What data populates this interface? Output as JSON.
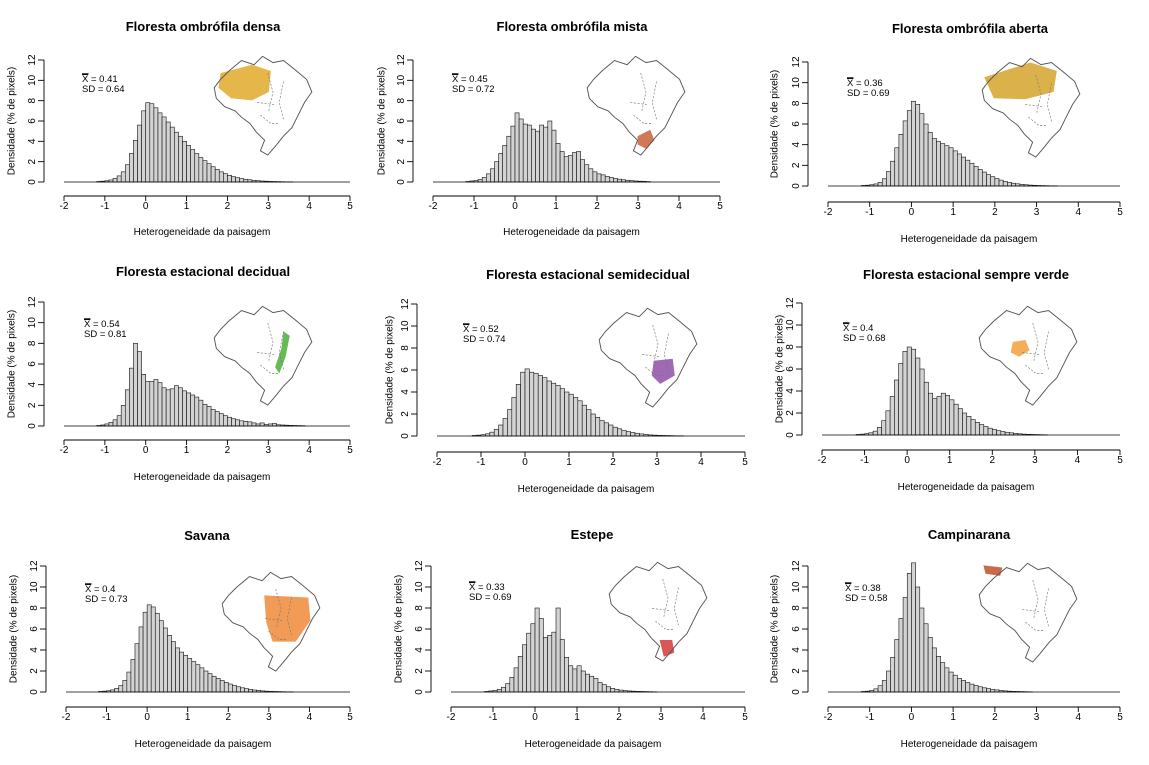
{
  "figure": {
    "xlabel": "Heterogeneidade da paisagem",
    "ylabel": "Densidade (% de pixels)",
    "mean_symbol": "X"
  },
  "chart_data": [
    {
      "type": "bar",
      "title": "Floresta ombrófila densa",
      "xlabel": "Heterogeneidade da paisagem",
      "ylabel": "Densidade (% de pixels)",
      "xlim": [
        -2,
        5
      ],
      "ylim": [
        0,
        12
      ],
      "xticks": [
        "-2",
        "-1",
        "0",
        "1",
        "2",
        "3",
        "4",
        "5"
      ],
      "yticks": [
        "0",
        "2",
        "4",
        "6",
        "8",
        "10",
        "12"
      ],
      "mean": "0.41",
      "sd": "0.64",
      "map_color": "#e0a92a",
      "bins": {
        "start": -2.0,
        "width": 0.1
      },
      "values": [
        0,
        0,
        0,
        0,
        0,
        0,
        0,
        0,
        0.05,
        0.08,
        0.12,
        0.2,
        0.35,
        0.6,
        1.0,
        1.7,
        2.8,
        4.1,
        5.6,
        7.0,
        7.8,
        7.7,
        7.3,
        6.8,
        6.4,
        5.9,
        5.4,
        4.9,
        4.5,
        4.0,
        3.6,
        3.2,
        2.8,
        2.4,
        2.1,
        1.8,
        1.5,
        1.25,
        1.0,
        0.82,
        0.66,
        0.52,
        0.42,
        0.34,
        0.27,
        0.22,
        0.17,
        0.13,
        0.1,
        0.08,
        0.06,
        0.05,
        0.04,
        0.03,
        0.02,
        0.02
      ]
    },
    {
      "type": "bar",
      "title": "Floresta ombrófila mista",
      "xlabel": "Heterogeneidade da paisagem",
      "ylabel": "Densidade (% de pixels)",
      "xlim": [
        -2,
        5
      ],
      "ylim": [
        0,
        12
      ],
      "xticks": [
        "-2",
        "-1",
        "0",
        "1",
        "2",
        "3",
        "4",
        "5"
      ],
      "yticks": [
        "0",
        "2",
        "4",
        "6",
        "8",
        "10",
        "12"
      ],
      "mean": "0.45",
      "sd": "0.72",
      "map_color": "#c9603a",
      "bins": {
        "start": -2.0,
        "width": 0.1
      },
      "values": [
        0,
        0,
        0,
        0,
        0,
        0,
        0,
        0,
        0.05,
        0.1,
        0.15,
        0.25,
        0.45,
        0.8,
        1.3,
        2.0,
        2.8,
        3.6,
        4.5,
        5.5,
        6.8,
        6.2,
        5.7,
        5.6,
        5.2,
        5.0,
        5.6,
        5.4,
        6.0,
        5.1,
        3.8,
        3.0,
        2.5,
        2.6,
        2.9,
        3.0,
        2.2,
        1.7,
        1.3,
        1.0,
        0.8,
        0.7,
        0.55,
        0.45,
        0.35,
        0.28,
        0.22,
        0.17,
        0.13,
        0.1,
        0.08,
        0.06,
        0.04
      ]
    },
    {
      "type": "bar",
      "title": "Floresta ombrófila aberta",
      "xlabel": "Heterogeneidade da paisagem",
      "ylabel": "Densidade (% de pixels)",
      "xlim": [
        -2,
        5
      ],
      "ylim": [
        0,
        12
      ],
      "xticks": [
        "-2",
        "-1",
        "0",
        "1",
        "2",
        "3",
        "4",
        "5"
      ],
      "yticks": [
        "0",
        "2",
        "4",
        "6",
        "8",
        "10",
        "12"
      ],
      "mean": "0.36",
      "sd": "0.69",
      "map_color": "#d4a32c",
      "bins": {
        "start": -2.0,
        "width": 0.1
      },
      "values": [
        0,
        0,
        0,
        0,
        0,
        0,
        0,
        0,
        0.05,
        0.08,
        0.12,
        0.2,
        0.35,
        0.7,
        1.4,
        2.4,
        3.7,
        5.0,
        6.3,
        7.3,
        8.2,
        7.9,
        7.0,
        6.0,
        5.2,
        4.6,
        4.3,
        4.1,
        3.9,
        3.7,
        3.4,
        3.1,
        2.8,
        2.5,
        2.2,
        1.9,
        1.6,
        1.35,
        1.1,
        0.9,
        0.72,
        0.57,
        0.45,
        0.35,
        0.27,
        0.21,
        0.16,
        0.12,
        0.09,
        0.07,
        0.05,
        0.04,
        0.03,
        0.02,
        0.02
      ]
    },
    {
      "type": "bar",
      "title": "Floresta estacional decidual",
      "xlabel": "Heterogeneidade da paisagem",
      "ylabel": "Densidade (% de pixels)",
      "xlim": [
        -2,
        5
      ],
      "ylim": [
        0,
        12
      ],
      "xticks": [
        "-2",
        "-1",
        "0",
        "1",
        "2",
        "3",
        "4",
        "5"
      ],
      "yticks": [
        "0",
        "2",
        "4",
        "6",
        "8",
        "10",
        "12"
      ],
      "mean": "0.54",
      "sd": "0.81",
      "map_color": "#4caf3a",
      "bins": {
        "start": -2.0,
        "width": 0.1
      },
      "values": [
        0,
        0,
        0,
        0,
        0,
        0,
        0,
        0,
        0.05,
        0.1,
        0.2,
        0.35,
        0.6,
        1.0,
        2.0,
        3.5,
        5.6,
        8.0,
        7.2,
        5.0,
        4.3,
        4.3,
        4.5,
        4.2,
        3.7,
        3.5,
        3.6,
        3.9,
        3.7,
        3.4,
        3.2,
        3.0,
        2.8,
        2.5,
        2.1,
        1.9,
        1.6,
        1.4,
        1.2,
        1.0,
        0.85,
        0.7,
        0.6,
        0.5,
        0.45,
        0.4,
        0.3,
        0.2,
        0.3,
        0.15,
        0.2,
        0.25,
        0.12,
        0.1,
        0.08,
        0.06,
        0.05,
        0.04,
        0.03
      ]
    },
    {
      "type": "bar",
      "title": "Floresta estacional semidecidual",
      "xlabel": "Heterogeneidade da paisagem",
      "ylabel": "Densidade (% de pixels)",
      "xlim": [
        -2,
        5
      ],
      "ylim": [
        0,
        12
      ],
      "xticks": [
        "-2",
        "-1",
        "0",
        "1",
        "2",
        "3",
        "4",
        "5"
      ],
      "yticks": [
        "0",
        "2",
        "4",
        "6",
        "8",
        "10",
        "12"
      ],
      "mean": "0.52",
      "sd": "0.74",
      "map_color": "#8e4fa6",
      "bins": {
        "start": -2.0,
        "width": 0.1
      },
      "values": [
        0,
        0,
        0,
        0,
        0,
        0,
        0,
        0,
        0.05,
        0.08,
        0.12,
        0.2,
        0.35,
        0.6,
        1.0,
        1.6,
        2.4,
        3.5,
        4.7,
        5.8,
        6.1,
        5.8,
        5.7,
        5.5,
        5.3,
        5.0,
        4.8,
        4.6,
        4.3,
        4.0,
        3.8,
        3.5,
        3.2,
        2.8,
        2.4,
        2.0,
        1.7,
        1.4,
        1.2,
        1.0,
        0.8,
        0.65,
        0.5,
        0.4,
        0.32,
        0.25,
        0.19,
        0.14,
        0.1,
        0.08,
        0.06,
        0.05,
        0.04,
        0.03,
        0.02,
        0.02
      ]
    },
    {
      "type": "bar",
      "title": "Floresta estacional sempre verde",
      "xlabel": "Heterogeneidade da paisagem",
      "ylabel": "Densidade (% de pixels)",
      "xlim": [
        -2,
        5
      ],
      "ylim": [
        0,
        12
      ],
      "xticks": [
        "-2",
        "-1",
        "0",
        "1",
        "2",
        "3",
        "4",
        "5"
      ],
      "yticks": [
        "0",
        "2",
        "4",
        "6",
        "8",
        "10",
        "12"
      ],
      "mean": "0.4",
      "sd": "0.68",
      "map_color": "#f2a03a",
      "bins": {
        "start": -2.0,
        "width": 0.1
      },
      "values": [
        0,
        0,
        0,
        0,
        0,
        0,
        0,
        0,
        0.05,
        0.08,
        0.12,
        0.2,
        0.35,
        0.7,
        1.3,
        2.2,
        3.5,
        5.0,
        6.5,
        7.6,
        8.0,
        7.8,
        7.0,
        6.0,
        4.8,
        3.8,
        3.3,
        3.5,
        3.8,
        3.6,
        3.2,
        2.8,
        2.4,
        2.0,
        1.7,
        1.4,
        1.15,
        0.95,
        0.78,
        0.62,
        0.5,
        0.4,
        0.32,
        0.25,
        0.2,
        0.15,
        0.11,
        0.08,
        0.06,
        0.05,
        0.04,
        0.03,
        0.02
      ]
    },
    {
      "type": "bar",
      "title": "Savana",
      "xlabel": "Heterogeneidade da paisagem",
      "ylabel": "Densidade (% de pixels)",
      "xlim": [
        -2,
        5
      ],
      "ylim": [
        0,
        12
      ],
      "xticks": [
        "-2",
        "-1",
        "0",
        "1",
        "2",
        "3",
        "4",
        "5"
      ],
      "yticks": [
        "0",
        "2",
        "4",
        "6",
        "8",
        "10",
        "12"
      ],
      "mean": "0.4",
      "sd": "0.73",
      "map_color": "#f08a3a",
      "bins": {
        "start": -2.0,
        "width": 0.1
      },
      "values": [
        0,
        0,
        0,
        0,
        0,
        0,
        0,
        0,
        0.05,
        0.08,
        0.12,
        0.2,
        0.35,
        0.6,
        1.1,
        1.9,
        3.1,
        4.6,
        6.2,
        7.6,
        8.3,
        8.1,
        7.5,
        6.8,
        6.1,
        5.4,
        4.8,
        4.2,
        3.8,
        3.5,
        3.2,
        2.9,
        2.6,
        2.3,
        2.0,
        1.75,
        1.5,
        1.3,
        1.1,
        0.92,
        0.76,
        0.62,
        0.5,
        0.4,
        0.32,
        0.25,
        0.19,
        0.15,
        0.11,
        0.08,
        0.06,
        0.05,
        0.04,
        0.03,
        0.02,
        0.02
      ]
    },
    {
      "type": "bar",
      "title": "Estepe",
      "xlabel": "Heterogeneidade da paisagem",
      "ylabel": "Densidade (% de pixels)",
      "xlim": [
        -2,
        5
      ],
      "ylim": [
        0,
        12
      ],
      "xticks": [
        "-2",
        "-1",
        "0",
        "1",
        "2",
        "3",
        "4",
        "5"
      ],
      "yticks": [
        "0",
        "2",
        "4",
        "6",
        "8",
        "10",
        "12"
      ],
      "mean": "0.33",
      "sd": "0.69",
      "map_color": "#d23a3a",
      "bins": {
        "start": -2.0,
        "width": 0.1
      },
      "values": [
        0,
        0,
        0,
        0,
        0,
        0,
        0,
        0,
        0.05,
        0.1,
        0.15,
        0.25,
        0.45,
        0.8,
        1.4,
        2.3,
        3.4,
        4.5,
        5.6,
        6.5,
        8.0,
        7.0,
        5.2,
        5.4,
        5.7,
        8.0,
        5.0,
        3.3,
        2.5,
        2.2,
        2.5,
        2.0,
        1.7,
        1.5,
        1.3,
        0.9,
        0.7,
        0.5,
        0.35,
        0.25,
        0.18,
        0.13,
        0.1,
        0.08,
        0.06,
        0.05,
        0.04,
        0.03,
        0.02
      ]
    },
    {
      "type": "bar",
      "title": "Campinarana",
      "xlabel": "Heterogeneidade da paisagem",
      "ylabel": "Densidade (% de pixels)",
      "xlim": [
        -2,
        5
      ],
      "ylim": [
        0,
        12
      ],
      "xticks": [
        "-2",
        "-1",
        "0",
        "1",
        "2",
        "3",
        "4",
        "5"
      ],
      "yticks": [
        "0",
        "2",
        "4",
        "6",
        "8",
        "10",
        "12"
      ],
      "mean": "0.38",
      "sd": "0.58",
      "map_color": "#c0502a",
      "bins": {
        "start": -2.0,
        "width": 0.1
      },
      "values": [
        0,
        0,
        0,
        0,
        0,
        0,
        0,
        0,
        0.05,
        0.08,
        0.15,
        0.3,
        0.6,
        1.1,
        2.0,
        3.3,
        5.0,
        7.0,
        9.0,
        11.3,
        12.3,
        10.0,
        8.0,
        6.5,
        5.2,
        4.2,
        3.4,
        2.8,
        2.3,
        1.9,
        1.6,
        1.3,
        1.1,
        0.9,
        0.75,
        0.62,
        0.5,
        0.4,
        0.32,
        0.25,
        0.2,
        0.15,
        0.11,
        0.08,
        0.06,
        0.05,
        0.04,
        0.03,
        0.02
      ]
    }
  ]
}
